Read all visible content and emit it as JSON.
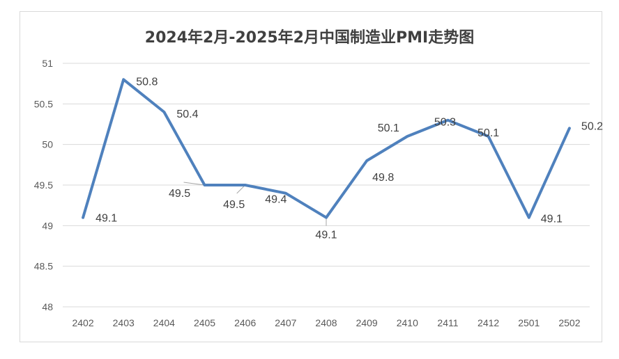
{
  "chart_data": {
    "type": "line",
    "title": "2024年2月-2025年2月中国制造业PMI走势图",
    "categories": [
      "2402",
      "2403",
      "2404",
      "2405",
      "2406",
      "2407",
      "2408",
      "2409",
      "2410",
      "2411",
      "2412",
      "2501",
      "2502"
    ],
    "values": [
      49.1,
      50.8,
      50.4,
      49.5,
      49.5,
      49.4,
      49.1,
      49.8,
      50.1,
      50.3,
      50.1,
      49.1,
      50.2
    ],
    "data_labels": [
      "49.1",
      "50.8",
      "50.4",
      "49.5",
      "49.5",
      "49.4",
      "49.1",
      "49.8",
      "50.1",
      "50.3",
      "50.1",
      "49.1",
      "50.2"
    ],
    "y_ticks": [
      "48",
      "48.5",
      "49",
      "49.5",
      "50",
      "50.5",
      "51"
    ],
    "ylim": [
      48,
      51
    ],
    "grid": true,
    "legend": "none",
    "line_color": "#4f81bd"
  }
}
